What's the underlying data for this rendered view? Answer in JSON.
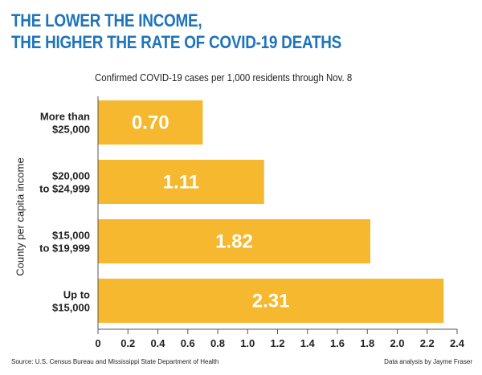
{
  "chart_data": {
    "type": "bar",
    "orientation": "horizontal",
    "title_lines": [
      "THE LOWER THE INCOME,",
      "THE HIGHER THE RATE OF COVID-19 DEATHS"
    ],
    "subtitle": "Confirmed COVID-19 cases per 1,000 residents through Nov. 8",
    "ylabel": "County per capita income",
    "xlabel": "",
    "categories": [
      [
        "More than",
        "$25,000"
      ],
      [
        "$20,000",
        "to $24,999"
      ],
      [
        "$15,000",
        "to $19,999"
      ],
      [
        "Up to",
        "$15,000"
      ]
    ],
    "values": [
      0.7,
      1.11,
      1.82,
      2.31
    ],
    "value_labels": [
      "0.70",
      "1.11",
      "1.82",
      "2.31"
    ],
    "xlim": [
      0,
      2.4
    ],
    "xticks": [
      "0",
      "0.2",
      "0.4",
      "0.6",
      "0.8",
      "1.0",
      "1.2",
      "1.4",
      "1.6",
      "1.8",
      "2.0",
      "2.2",
      "2.4"
    ],
    "bar_color": "#f5b82e",
    "label_color": "#ffffff",
    "grid": false
  },
  "footer": {
    "source": "Source: U.S. Census Bureau and Mississippi State Department of Health",
    "credit": "Data analysis by Jayme Fraser"
  },
  "colors": {
    "title": "#1e74bb"
  }
}
